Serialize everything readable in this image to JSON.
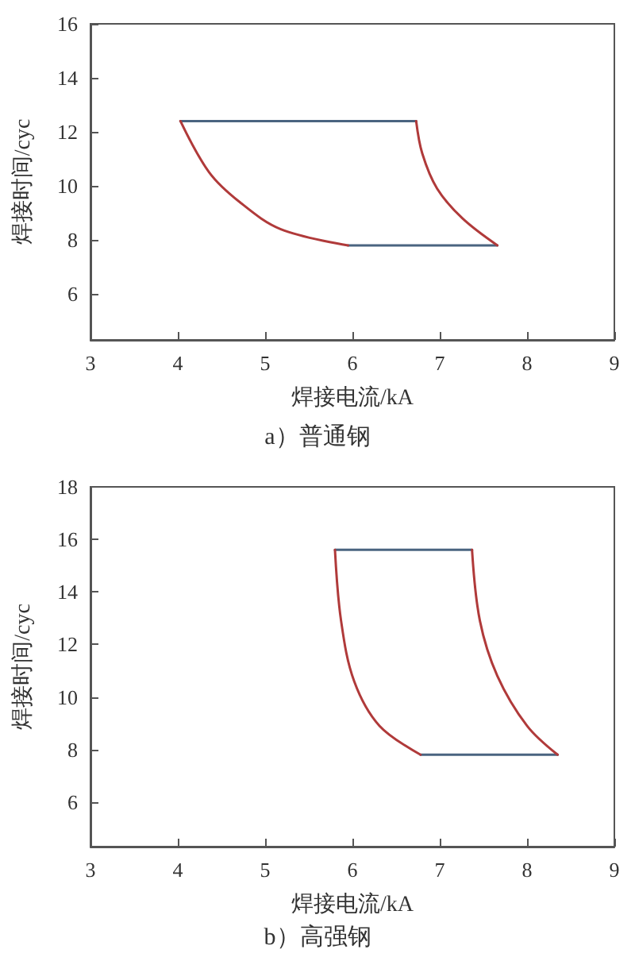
{
  "chart_data": [
    {
      "type": "line",
      "title": "a）普通钢",
      "xlabel": "焊接电流/kA",
      "ylabel": "焊接时间/cyc",
      "xlim": [
        3,
        9
      ],
      "xticks": [
        3,
        4,
        5,
        6,
        7,
        8,
        9
      ],
      "ylim": [
        4.3,
        16
      ],
      "yticks": [
        6,
        8,
        10,
        12,
        14,
        16
      ],
      "marker": "none",
      "line_style": "solid",
      "series": [
        {
          "color": "#4a6480",
          "x": [
            4.03,
            6.73
          ],
          "values": [
            12.4,
            12.4
          ]
        },
        {
          "color": "#4a6480",
          "x": [
            5.95,
            7.66
          ],
          "values": [
            7.8,
            7.8
          ]
        },
        {
          "color": "#b03a3a",
          "x": [
            4.03,
            4.36,
            4.71,
            5.18,
            5.95
          ],
          "values": [
            12.4,
            10.5,
            9.4,
            8.4,
            7.8
          ]
        },
        {
          "color": "#b03a3a",
          "x": [
            6.73,
            6.8,
            6.97,
            7.26,
            7.66
          ],
          "values": [
            12.4,
            11.2,
            9.9,
            8.8,
            7.8
          ]
        }
      ]
    },
    {
      "type": "line",
      "title": "b）高强钢",
      "xlabel": "焊接电流/kA",
      "ylabel": "焊接时间/cyc",
      "xlim": [
        3,
        9
      ],
      "xticks": [
        3,
        4,
        5,
        6,
        7,
        8,
        9
      ],
      "ylim": [
        4.3,
        18
      ],
      "yticks": [
        6,
        8,
        10,
        12,
        14,
        16,
        18
      ],
      "marker": "none",
      "line_style": "solid",
      "series": [
        {
          "color": "#4a6480",
          "x": [
            5.8,
            7.37
          ],
          "values": [
            15.6,
            15.6
          ]
        },
        {
          "color": "#4a6480",
          "x": [
            6.78,
            8.35
          ],
          "values": [
            7.8,
            7.8
          ]
        },
        {
          "color": "#b03a3a",
          "x": [
            5.8,
            5.87,
            6.02,
            6.31,
            6.78
          ],
          "values": [
            15.6,
            12.9,
            10.6,
            8.9,
            7.8
          ]
        },
        {
          "color": "#b03a3a",
          "x": [
            7.37,
            7.46,
            7.66,
            8.0,
            8.35
          ],
          "values": [
            15.6,
            12.9,
            10.8,
            8.9,
            7.8
          ]
        }
      ]
    }
  ]
}
